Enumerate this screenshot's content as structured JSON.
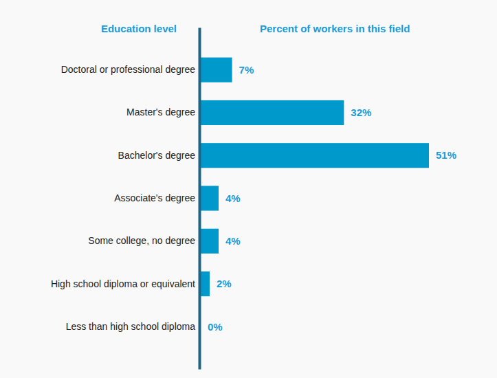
{
  "chart_data": {
    "type": "bar",
    "orientation": "horizontal",
    "ylabel": "Education level",
    "xlabel": "Percent of workers in this field",
    "categories": [
      "Doctoral or professional degree",
      "Master's degree",
      "Bachelor's degree",
      "Associate's degree",
      "Some college, no degree",
      "High school diploma or equivalent",
      "Less than high school diploma"
    ],
    "values": [
      7,
      32,
      51,
      4,
      4,
      2,
      0
    ],
    "value_labels": [
      "7%",
      "32%",
      "51%",
      "4%",
      "4%",
      "2%",
      "0%"
    ],
    "color": "#0099cc",
    "data_labels": true,
    "tick_labels": "y"
  }
}
